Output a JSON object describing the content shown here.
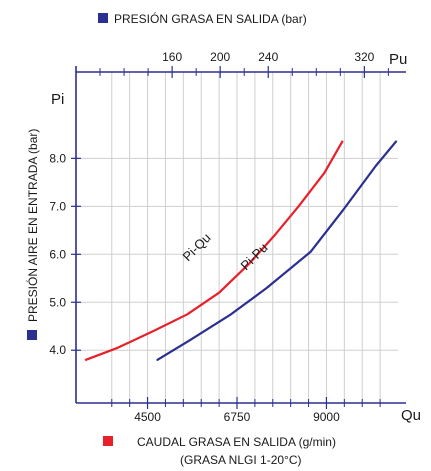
{
  "chart_data": {
    "type": "line",
    "top_legend": {
      "label": "PRESIÓN GRASA EN SALIDA (bar)",
      "color": "#2b2f8f"
    },
    "left_legend": {
      "label": "PRESIÓN AIRE EN ENTRADA (bar)",
      "color": "#2b2f8f"
    },
    "bottom_legend": {
      "label": "CAUDAL GRASA EN SALIDA (g/min)",
      "sublabel": "(GRASA NLGI 1-20°C)",
      "color": "#e8202a"
    },
    "xlabel": "Qu",
    "ylabel": "Pi",
    "x2label": "Pu",
    "xlim": [
      2700,
      10800
    ],
    "ylim": [
      2.9,
      9.8
    ],
    "x2lim": [
      80,
      348
    ],
    "x_ticks": [
      4500,
      6750,
      9000
    ],
    "x_minor_ticks": [
      3600,
      4050,
      4950,
      5400,
      5850,
      6300,
      7200,
      7650,
      8100,
      8550,
      9450,
      9900,
      10350
    ],
    "y_ticks": [
      4.0,
      5.0,
      6.0,
      7.0,
      8.0
    ],
    "x2_ticks": [
      160,
      200,
      240,
      320
    ],
    "x2_minor_ticks": [
      100,
      120,
      140,
      180,
      220,
      260,
      280,
      300,
      340
    ],
    "grid": true,
    "axis_color": "#2b2f8f",
    "grid_color": "#cfcfcf",
    "series": [
      {
        "name": "Pi-Qu",
        "color": "#e8202a",
        "x": [
          2950,
          3750,
          4650,
          5500,
          6300,
          7050,
          7700,
          8300,
          8950,
          9400
        ],
        "y": [
          3.8,
          4.05,
          4.4,
          4.75,
          5.2,
          5.8,
          6.4,
          7.0,
          7.7,
          8.35
        ]
      },
      {
        "name": "Pi-Pu",
        "color": "#2b2f8f",
        "x": [
          4750,
          5550,
          6600,
          7500,
          8600,
          9400,
          10250,
          10750
        ],
        "y": [
          3.8,
          4.2,
          4.75,
          5.3,
          6.05,
          6.9,
          7.85,
          8.35
        ]
      }
    ]
  }
}
